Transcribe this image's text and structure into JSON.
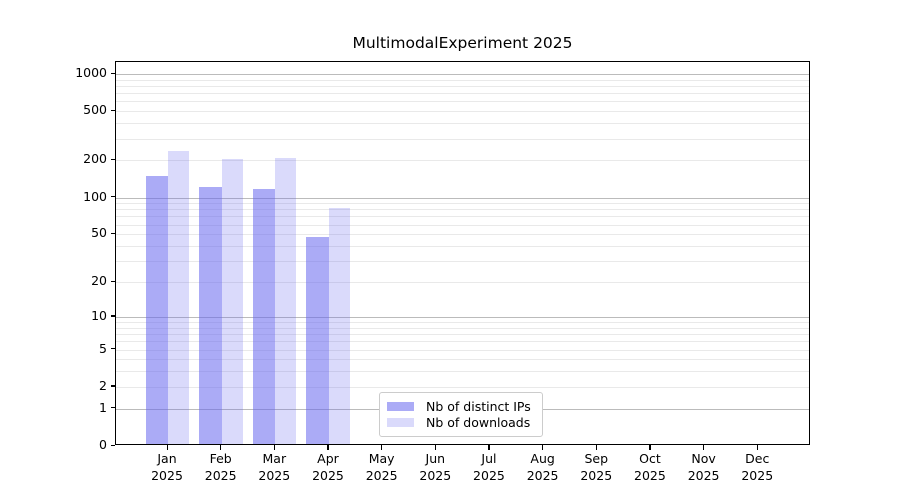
{
  "chart_data": {
    "type": "bar",
    "title": "MultimodalExperiment 2025",
    "x": {
      "categories": [
        "Jan",
        "Feb",
        "Mar",
        "Apr",
        "May",
        "Jun",
        "Jul",
        "Aug",
        "Sep",
        "Oct",
        "Nov",
        "Dec"
      ],
      "year_suffix": "2025"
    },
    "y": {
      "scale": "log10(value+1)",
      "ticks": [
        1000,
        500,
        200,
        100,
        50,
        20,
        10,
        5,
        2,
        1,
        0
      ],
      "range": [
        0,
        1000
      ],
      "major_gridlines": [
        1,
        10,
        100,
        1000
      ],
      "minor_gridline_steps": [
        2,
        3,
        4,
        5,
        6,
        7,
        8,
        9
      ],
      "grid": "on",
      "ylabel": ""
    },
    "series": [
      {
        "name": "Nb of distinct IPs",
        "color": "#a9a9f6",
        "base_color": "#6666ee",
        "alpha": 0.55,
        "values": [
          143,
          118,
          113,
          46,
          0,
          0,
          0,
          0,
          0,
          0,
          0,
          0
        ]
      },
      {
        "name": "Nb of downloads",
        "color": "#dbdbfa",
        "base_color": "#6666ee",
        "alpha": 0.24,
        "values": [
          230,
          197,
          202,
          79,
          0,
          0,
          0,
          0,
          0,
          0,
          0,
          0
        ]
      }
    ],
    "legend": {
      "position": "bottom-center",
      "items": [
        "Nb of distinct IPs",
        "Nb of downloads"
      ]
    }
  },
  "colors": {
    "background": "#ffffff",
    "axis": "#000000",
    "major_grid": "#bbbbbb",
    "minor_grid": "#e9e9e9",
    "text": "#000000",
    "legend_border": "#cccccc",
    "legend_background": "#ffffff"
  }
}
